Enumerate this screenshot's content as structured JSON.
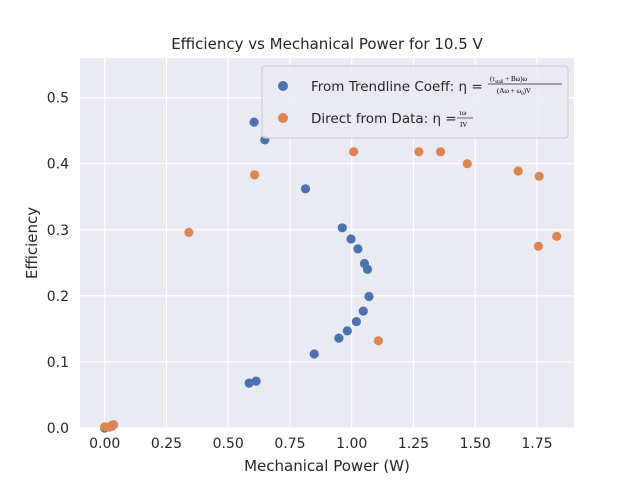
{
  "chart_data": {
    "type": "scatter",
    "title": "Efficiency vs Mechanical Power for 10.5 V",
    "xlabel": "Mechanical Power (W)",
    "ylabel": "Efficiency",
    "xlim": [
      -0.1,
      1.9
    ],
    "ylim": [
      0.0,
      0.56
    ],
    "xticks": [
      0.0,
      0.25,
      0.5,
      0.75,
      1.0,
      1.25,
      1.5,
      1.75
    ],
    "xtick_labels": [
      "0.00",
      "0.25",
      "0.50",
      "0.75",
      "1.00",
      "1.25",
      "1.50",
      "1.75"
    ],
    "yticks": [
      0.0,
      0.1,
      0.2,
      0.3,
      0.4,
      0.5
    ],
    "ytick_labels": [
      "0.0",
      "0.1",
      "0.2",
      "0.3",
      "0.4",
      "0.5"
    ],
    "grid": true,
    "legend_placement": "upper right",
    "series": [
      {
        "name": "From Trendline Coeff",
        "color": "#4c72b0",
        "points": [
          [
            0.605,
            0.463
          ],
          [
            0.648,
            0.436
          ],
          [
            0.813,
            0.362
          ],
          [
            0.962,
            0.303
          ],
          [
            0.997,
            0.286
          ],
          [
            1.025,
            0.271
          ],
          [
            1.052,
            0.249
          ],
          [
            1.064,
            0.24
          ],
          [
            1.07,
            0.199
          ],
          [
            1.047,
            0.177
          ],
          [
            1.019,
            0.161
          ],
          [
            0.982,
            0.147
          ],
          [
            0.948,
            0.136
          ],
          [
            0.848,
            0.112
          ],
          [
            0.613,
            0.071
          ],
          [
            0.585,
            0.068
          ],
          [
            0.0,
            0.0
          ],
          [
            0.03,
            0.003
          ]
        ]
      },
      {
        "name": "Direct from Data",
        "color": "#dd8452",
        "points": [
          [
            0.341,
            0.296
          ],
          [
            0.607,
            0.383
          ],
          [
            1.008,
            0.418
          ],
          [
            1.272,
            0.418
          ],
          [
            1.36,
            0.418
          ],
          [
            1.468,
            0.4
          ],
          [
            1.674,
            0.389
          ],
          [
            1.759,
            0.381
          ],
          [
            1.756,
            0.275
          ],
          [
            1.83,
            0.29
          ],
          [
            1.108,
            0.132
          ],
          [
            0.0,
            0.002
          ],
          [
            0.018,
            0.001
          ],
          [
            0.036,
            0.005
          ],
          [
            0.03,
            0.004
          ]
        ]
      }
    ],
    "legend": [
      {
        "prefix": "From Trendline Coeff: η =",
        "numerator": "(τ",
        "numerator_sub": "stall",
        "numerator_rest": " + Bω)ω",
        "denominator": "(Aω + ω",
        "denominator_sub": "0",
        "denominator_rest": ")V"
      },
      {
        "prefix": "Direct from Data: η =",
        "numerator": "τω",
        "denominator": "IV"
      }
    ]
  }
}
